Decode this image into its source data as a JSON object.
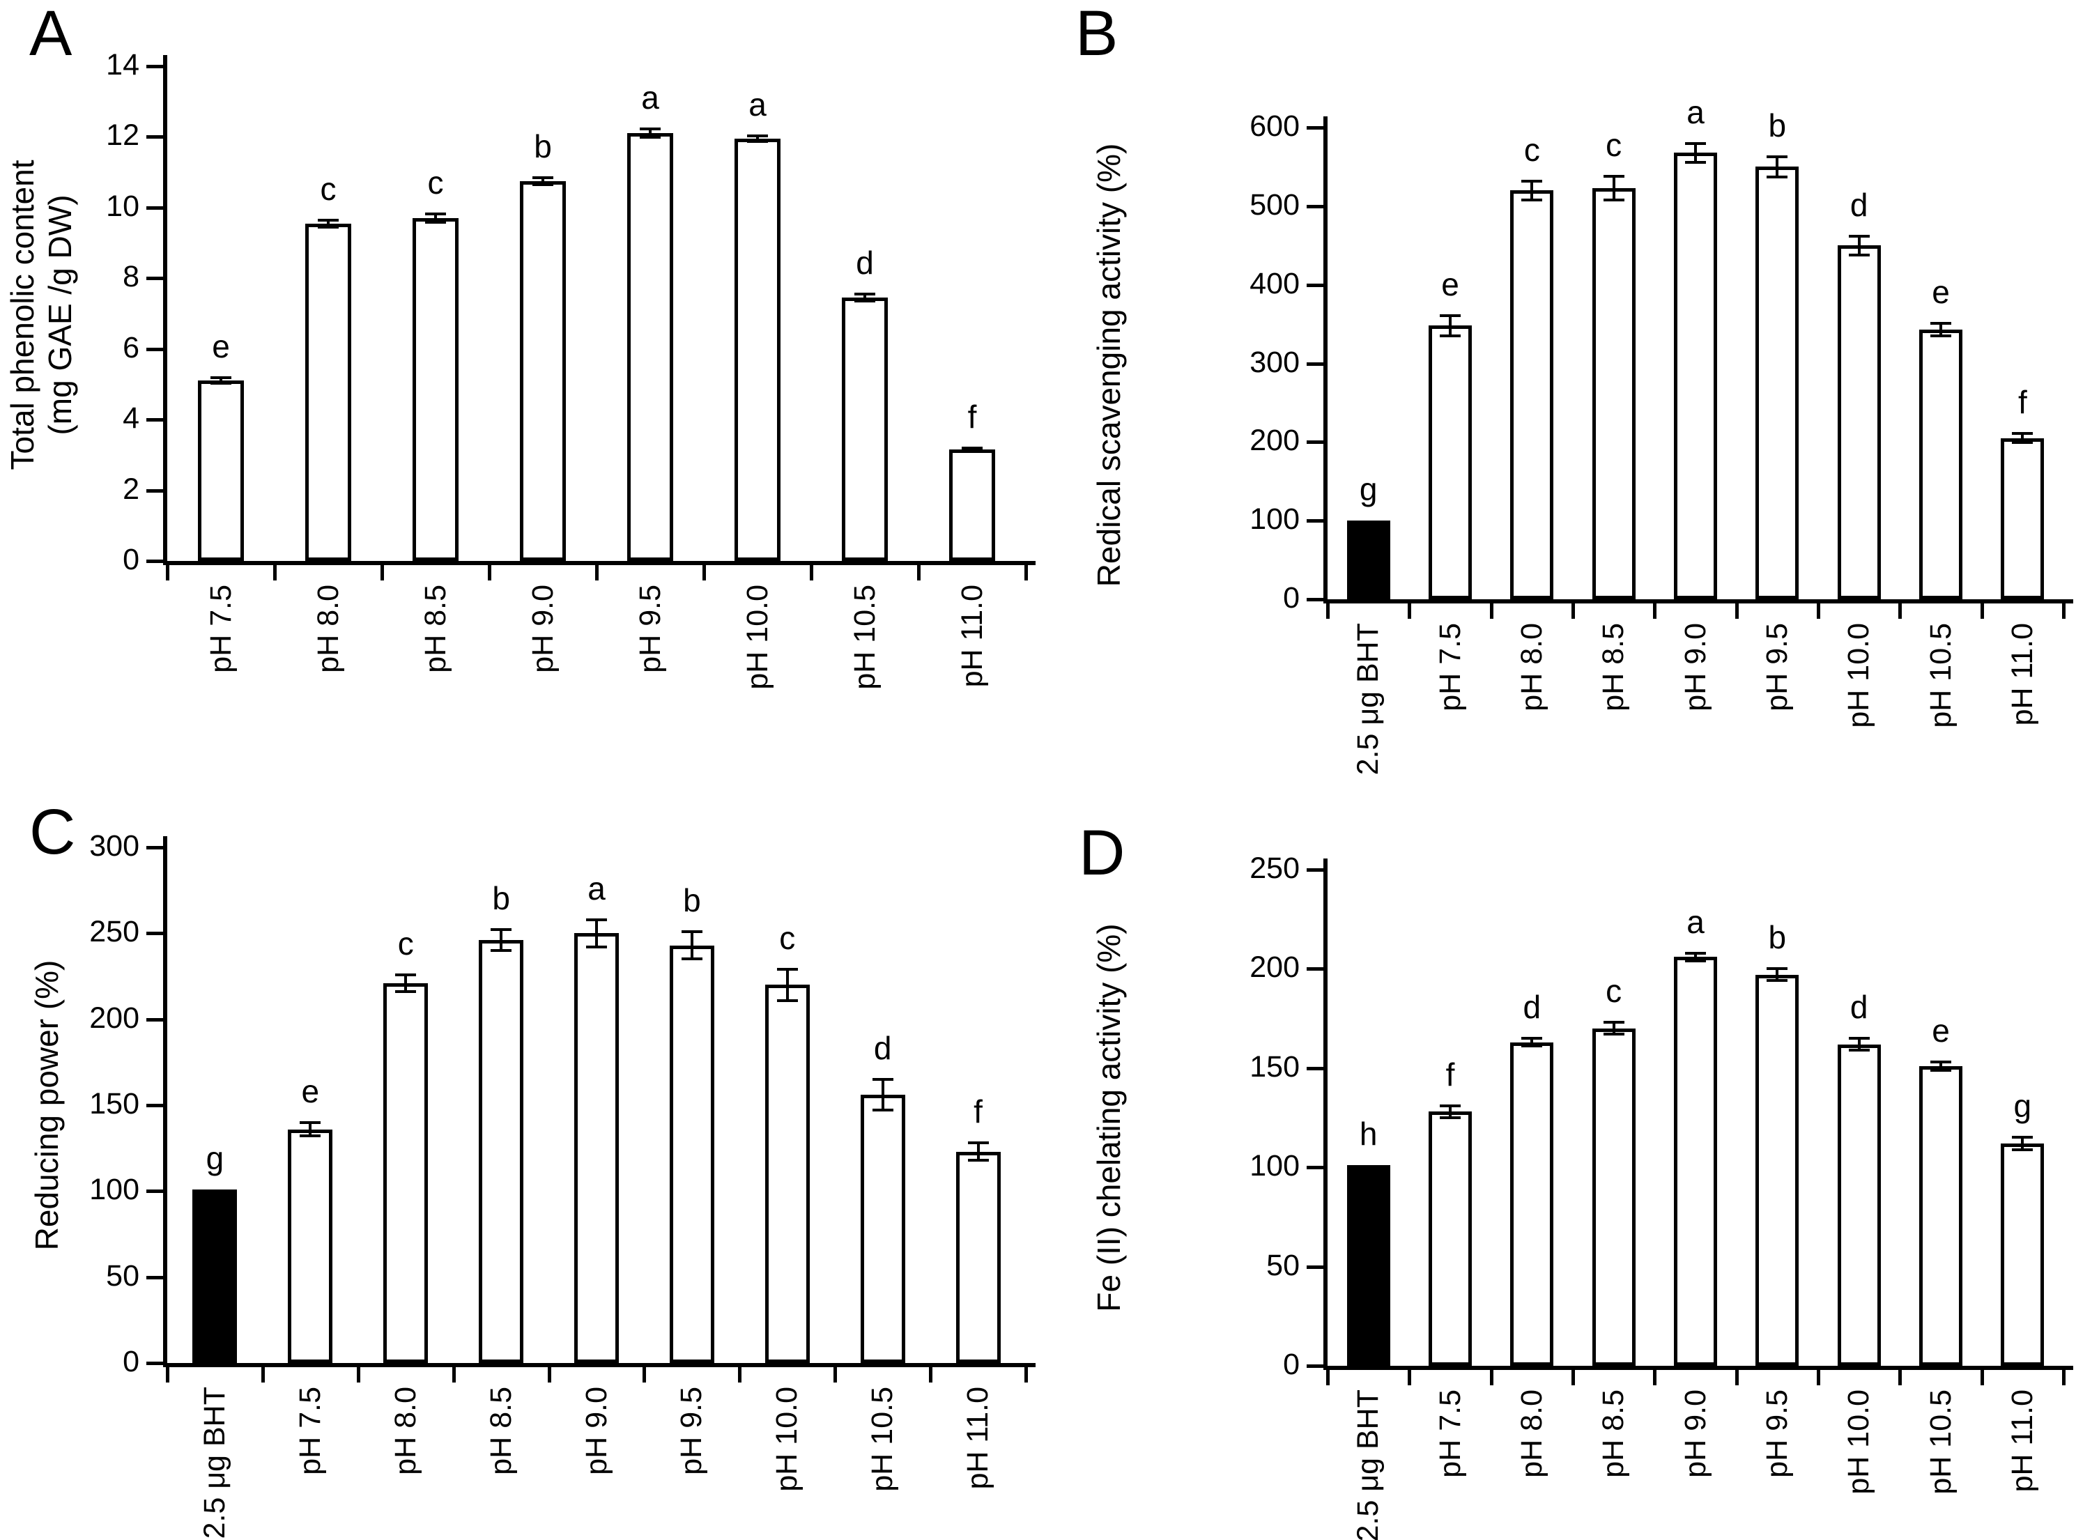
{
  "figure": {
    "background": "#ffffff",
    "ink": "#000000",
    "control_fill": "#000000",
    "sample_fill": "#ffffff"
  },
  "chart_data": [
    {
      "panel": "A",
      "type": "bar",
      "ylabel_lines": [
        "Total phenolic content",
        "(mg GAE /g DW)"
      ],
      "ylim": [
        0,
        14
      ],
      "yticks": [
        0,
        2,
        4,
        6,
        8,
        10,
        12,
        14
      ],
      "grid": false,
      "legend": "none",
      "categories": [
        "pH 7.5",
        "pH 8.0",
        "pH 8.5",
        "pH 9.0",
        "pH 9.5",
        "pH 10.0",
        "pH 10.5",
        "pH 11.0"
      ],
      "values": [
        5.1,
        9.55,
        9.7,
        10.75,
        12.1,
        11.95,
        7.45,
        3.15
      ],
      "errors": [
        0.08,
        0.1,
        0.12,
        0.1,
        0.12,
        0.08,
        0.1,
        0.05
      ],
      "letters": [
        "e",
        "c",
        "c",
        "b",
        "a",
        "a",
        "d",
        "f"
      ],
      "bar_fills": [
        "#ffffff",
        "#ffffff",
        "#ffffff",
        "#ffffff",
        "#ffffff",
        "#ffffff",
        "#ffffff",
        "#ffffff"
      ]
    },
    {
      "panel": "B",
      "type": "bar",
      "ylabel_lines": [
        "Redical scavenging activity (%)"
      ],
      "ylim": [
        0,
        600
      ],
      "yticks": [
        0,
        100,
        200,
        300,
        400,
        500,
        600
      ],
      "grid": false,
      "legend": "none",
      "categories": [
        "2.5 μg BHT",
        "pH 7.5",
        "pH 8.0",
        "pH 8.5",
        "pH 9.0",
        "pH 9.5",
        "pH 10.0",
        "pH 10.5",
        "pH 11.0"
      ],
      "values": [
        100,
        348,
        520,
        523,
        568,
        550,
        450,
        343,
        205
      ],
      "errors": [
        0,
        13,
        12,
        15,
        12,
        13,
        12,
        8,
        6
      ],
      "letters": [
        "g",
        "e",
        "c",
        "c",
        "a",
        "b",
        "d",
        "e",
        "f"
      ],
      "bar_fills": [
        "#000000",
        "#ffffff",
        "#ffffff",
        "#ffffff",
        "#ffffff",
        "#ffffff",
        "#ffffff",
        "#ffffff",
        "#ffffff"
      ]
    },
    {
      "panel": "C",
      "type": "bar",
      "ylabel_lines": [
        "Reducing power (%)"
      ],
      "ylim": [
        0,
        300
      ],
      "yticks": [
        0,
        50,
        100,
        150,
        200,
        250,
        300
      ],
      "grid": false,
      "legend": "none",
      "categories": [
        "2.5 μg BHT",
        "pH 7.5",
        "pH 8.0",
        "pH 8.5",
        "pH 9.0",
        "pH 9.5",
        "pH 10.0",
        "pH 10.5",
        "pH 11.0"
      ],
      "values": [
        101,
        136,
        221,
        246,
        250,
        243,
        220,
        156,
        123
      ],
      "errors": [
        0,
        4,
        5,
        6,
        8,
        8,
        9,
        9,
        5
      ],
      "letters": [
        "g",
        "e",
        "c",
        "b",
        "a",
        "b",
        "c",
        "d",
        "f"
      ],
      "bar_fills": [
        "#000000",
        "#ffffff",
        "#ffffff",
        "#ffffff",
        "#ffffff",
        "#ffffff",
        "#ffffff",
        "#ffffff",
        "#ffffff"
      ]
    },
    {
      "panel": "D",
      "type": "bar",
      "ylabel_lines": [
        "Fe (II) chelating activity (%)"
      ],
      "ylim": [
        0,
        250
      ],
      "yticks": [
        0,
        50,
        100,
        150,
        200,
        250
      ],
      "grid": false,
      "legend": "none",
      "categories": [
        "2.5 μg BHT",
        "pH 7.5",
        "pH 8.0",
        "pH 8.5",
        "pH 9.0",
        "pH 9.5",
        "pH 10.0",
        "pH 10.5",
        "pH 11.0"
      ],
      "values": [
        101,
        128,
        163,
        170,
        206,
        197,
        162,
        151,
        112
      ],
      "errors": [
        0,
        3,
        2,
        3,
        2,
        3,
        3,
        2,
        3
      ],
      "letters": [
        "h",
        "f",
        "d",
        "c",
        "a",
        "b",
        "d",
        "e",
        "g"
      ],
      "bar_fills": [
        "#000000",
        "#ffffff",
        "#ffffff",
        "#ffffff",
        "#ffffff",
        "#ffffff",
        "#ffffff",
        "#ffffff",
        "#ffffff"
      ]
    }
  ]
}
